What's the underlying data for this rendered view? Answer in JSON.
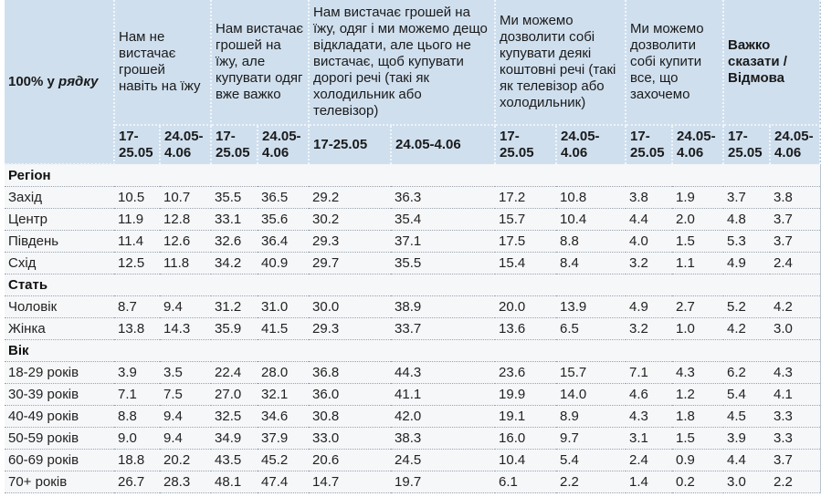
{
  "table": {
    "corner_label_prefix": "100% у ",
    "corner_label_italic": "рядку",
    "columns": [
      {
        "label": "Нам не вистачає грошей навіть на їжу"
      },
      {
        "label": "Нам вистачає грошей на їжу, але купувати одяг вже важко"
      },
      {
        "label": "Нам вистачає грошей на їжу, одяг і ми можемо дещо відкладати, але цього не вистачає, щоб купувати дорогі речі (такі як холодильник або телевізор)"
      },
      {
        "label": "Ми можемо дозволити собі купувати деякі коштовні речі (такі як телевізор або холодильник)"
      },
      {
        "label": "Ми можемо дозволити собі купити все, що захочемо"
      },
      {
        "label": "Важко сказати / Відмова"
      }
    ],
    "periods": [
      "17-25.05",
      "24.05-4.06"
    ],
    "sections": [
      {
        "title": "Регіон",
        "rows": [
          {
            "label": "Захід",
            "values": [
              "10.5",
              "10.7",
              "35.5",
              "36.5",
              "29.2",
              "36.3",
              "17.2",
              "10.8",
              "3.8",
              "1.9",
              "3.7",
              "3.8"
            ]
          },
          {
            "label": "Центр",
            "values": [
              "11.9",
              "12.8",
              "33.1",
              "35.6",
              "30.2",
              "35.4",
              "15.7",
              "10.4",
              "4.4",
              "2.0",
              "4.8",
              "3.7"
            ]
          },
          {
            "label": "Південь",
            "values": [
              "11.4",
              "12.6",
              "32.6",
              "36.4",
              "29.3",
              "37.1",
              "17.5",
              "8.8",
              "4.0",
              "1.5",
              "5.3",
              "3.7"
            ]
          },
          {
            "label": "Схід",
            "values": [
              "12.5",
              "11.8",
              "34.2",
              "40.9",
              "29.7",
              "35.5",
              "15.4",
              "8.4",
              "3.2",
              "1.1",
              "4.9",
              "2.4"
            ]
          }
        ]
      },
      {
        "title": "Стать",
        "rows": [
          {
            "label": "Чоловік",
            "values": [
              "8.7",
              "9.4",
              "31.2",
              "31.0",
              "30.0",
              "38.9",
              "20.0",
              "13.9",
              "4.9",
              "2.7",
              "5.2",
              "4.2"
            ]
          },
          {
            "label": "Жінка",
            "values": [
              "13.8",
              "14.3",
              "35.9",
              "41.5",
              "29.3",
              "33.7",
              "13.6",
              "6.5",
              "3.2",
              "1.0",
              "4.2",
              "3.0"
            ]
          }
        ]
      },
      {
        "title": "Вік",
        "rows": [
          {
            "label": "18-29 років",
            "values": [
              "3.9",
              "3.5",
              "22.4",
              "28.0",
              "36.8",
              "44.3",
              "23.6",
              "15.7",
              "7.1",
              "4.3",
              "6.2",
              "4.3"
            ]
          },
          {
            "label": "30-39 років",
            "values": [
              "7.1",
              "7.5",
              "27.0",
              "32.1",
              "36.0",
              "41.1",
              "19.9",
              "14.0",
              "4.6",
              "1.2",
              "5.4",
              "4.1"
            ]
          },
          {
            "label": "40-49 років",
            "values": [
              "8.8",
              "9.4",
              "32.5",
              "34.6",
              "30.8",
              "42.0",
              "19.1",
              "8.9",
              "4.3",
              "1.8",
              "4.5",
              "3.3"
            ]
          },
          {
            "label": "50-59 років",
            "values": [
              "9.0",
              "9.4",
              "34.9",
              "37.9",
              "33.0",
              "38.3",
              "16.0",
              "9.7",
              "3.1",
              "1.5",
              "3.9",
              "3.3"
            ]
          },
          {
            "label": "60-69 років",
            "values": [
              "18.8",
              "20.2",
              "43.5",
              "45.2",
              "20.6",
              "24.5",
              "10.4",
              "5.4",
              "2.4",
              "0.9",
              "4.4",
              "3.7"
            ]
          },
          {
            "label": "70+ років",
            "values": [
              "26.7",
              "28.3",
              "48.1",
              "47.4",
              "14.7",
              "19.7",
              "6.1",
              "2.2",
              "1.4",
              "0.2",
              "3.0",
              "2.2"
            ]
          }
        ]
      }
    ]
  },
  "colors": {
    "header_bg": "#cfdfee",
    "body_bg": "#f6f7f9",
    "row_separator": "#9aa3ad"
  }
}
